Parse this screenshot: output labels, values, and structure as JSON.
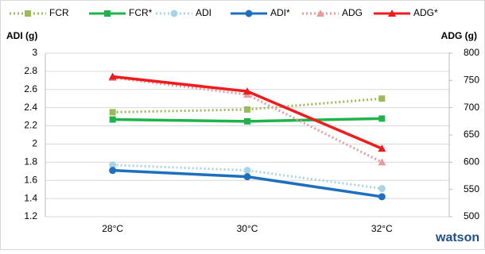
{
  "chart_data": {
    "type": "line",
    "y_label": "ADI (g)",
    "y2_label": "ADG (g)",
    "categories": [
      "28°C",
      "30°C",
      "32°C"
    ],
    "ylim": [
      1.2,
      3
    ],
    "yticks": [
      1.2,
      1.4,
      1.6,
      1.8,
      2,
      2.2,
      2.4,
      2.6,
      2.8,
      3
    ],
    "y2lim": [
      500,
      800
    ],
    "y2ticks": [
      500,
      550,
      600,
      650,
      700,
      750,
      800
    ],
    "grid": true,
    "legend": "top",
    "series": [
      {
        "name": "FCR",
        "color": "#9bbb59",
        "style": "dotted",
        "marker": "square",
        "values": [
          2.35,
          2.38,
          2.5
        ]
      },
      {
        "name": "FCR*",
        "color": "#1fb34a",
        "style": "solid",
        "marker": "square",
        "values": [
          2.27,
          2.25,
          2.28
        ]
      },
      {
        "name": "ADI",
        "color": "#a8d4e6",
        "style": "dotted",
        "marker": "circle",
        "values": [
          1.77,
          1.71,
          1.51
        ]
      },
      {
        "name": "ADI*",
        "color": "#1f6fbf",
        "style": "solid",
        "marker": "circle",
        "values": [
          1.71,
          1.64,
          1.42
        ]
      },
      {
        "name": "ADG",
        "color": "#e99a9a",
        "style": "dotted",
        "marker": "triangle",
        "axis": "y2",
        "values": [
          755,
          724,
          600
        ]
      },
      {
        "name": "ADG*",
        "color": "#ee1c1c",
        "style": "solid",
        "marker": "triangle",
        "axis": "y2",
        "values": [
          757,
          730,
          625
        ]
      }
    ],
    "logo": "watson"
  }
}
